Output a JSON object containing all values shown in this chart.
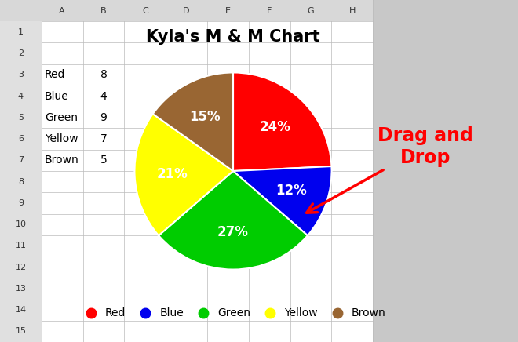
{
  "title": "Kyla's M & M Chart",
  "labels": [
    "Red",
    "Blue",
    "Green",
    "Yellow",
    "Brown"
  ],
  "values": [
    8,
    4,
    9,
    7,
    5
  ],
  "percentages": [
    "24%",
    "12%",
    "27%",
    "21%",
    "15%"
  ],
  "colors": [
    "#ff0000",
    "#0000ee",
    "#00cc00",
    "#ffff00",
    "#996633"
  ],
  "legend_colors": [
    "#ff0000",
    "#0000ee",
    "#00cc00",
    "#ffff00",
    "#996633"
  ],
  "background_color": "#d4d0c8",
  "spreadsheet_bg": "#ffffff",
  "grid_color": "#bbbbbb",
  "drag_drop_text": "Drag and\nDrop",
  "drag_drop_color": "#ff0000",
  "title_fontsize": 15,
  "pct_fontsize": 12,
  "legend_fontsize": 10,
  "drag_fontsize": 17,
  "startangle": 90
}
